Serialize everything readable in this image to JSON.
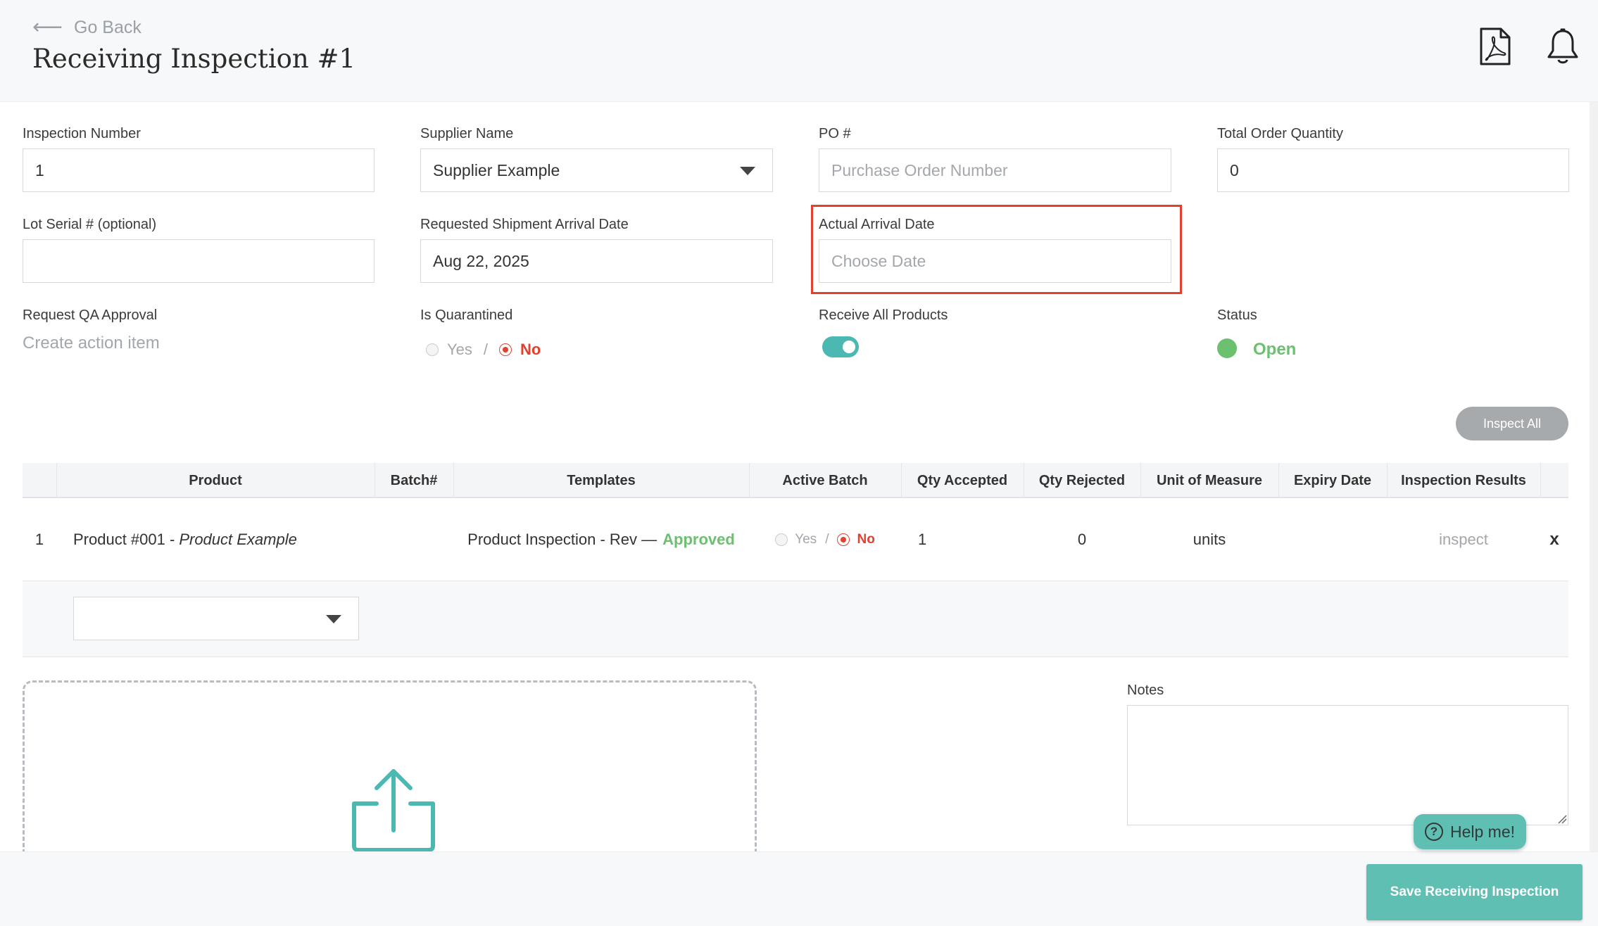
{
  "header": {
    "back_label": "Go Back",
    "title": "Receiving Inspection #1",
    "pdf_icon": "pdf-file-icon",
    "bell_icon": "bell-icon"
  },
  "form": {
    "inspection_number": {
      "label": "Inspection Number",
      "value": "1"
    },
    "supplier_name": {
      "label": "Supplier Name",
      "value": "Supplier Example"
    },
    "po": {
      "label": "PO #",
      "placeholder": "Purchase Order Number"
    },
    "total_order_quantity": {
      "label": "Total Order Quantity",
      "value": "0"
    },
    "lot_serial": {
      "label": "Lot Serial # (optional)",
      "value": ""
    },
    "requested_arrival": {
      "label": "Requested Shipment Arrival Date",
      "value": "Aug 22, 2025"
    },
    "actual_arrival": {
      "label": "Actual Arrival Date",
      "placeholder": "Choose Date"
    },
    "request_qa": {
      "label": "Request QA Approval",
      "link": "Create action item"
    },
    "is_quarantined": {
      "label": "Is Quarantined",
      "yes": "Yes",
      "separator": "/",
      "no": "No",
      "selected": "No"
    },
    "receive_all": {
      "label": "Receive All Products",
      "on": true
    },
    "status": {
      "label": "Status",
      "value": "Open",
      "color": "#6cc070"
    }
  },
  "actions": {
    "inspect_all": "Inspect All"
  },
  "table": {
    "headers": [
      "Product",
      "Batch#",
      "Templates",
      "Active Batch",
      "Qty Accepted",
      "Qty Rejected",
      "Unit of Measure",
      "Expiry Date",
      "Inspection Results"
    ],
    "rows": [
      {
        "index": "1",
        "product_code": "Product #001 - ",
        "product_name": "Product Example",
        "batch": "",
        "template": "Product Inspection - Rev —",
        "template_status": "Approved",
        "active_batch_yes": "Yes",
        "active_batch_sep": "/",
        "active_batch_no": "No",
        "active_batch_selected": "No",
        "qty_accepted": "1",
        "qty_rejected": "0",
        "unit": "units",
        "expiry": "",
        "result": "inspect",
        "remove": "x"
      }
    ]
  },
  "notes": {
    "label": "Notes",
    "value": ""
  },
  "help": {
    "label": "Help me!"
  },
  "footer": {
    "save_label": "Save Receiving Inspection"
  },
  "colors": {
    "accent": "#5fbfb3",
    "danger": "#e2412f",
    "success": "#6cc070"
  }
}
